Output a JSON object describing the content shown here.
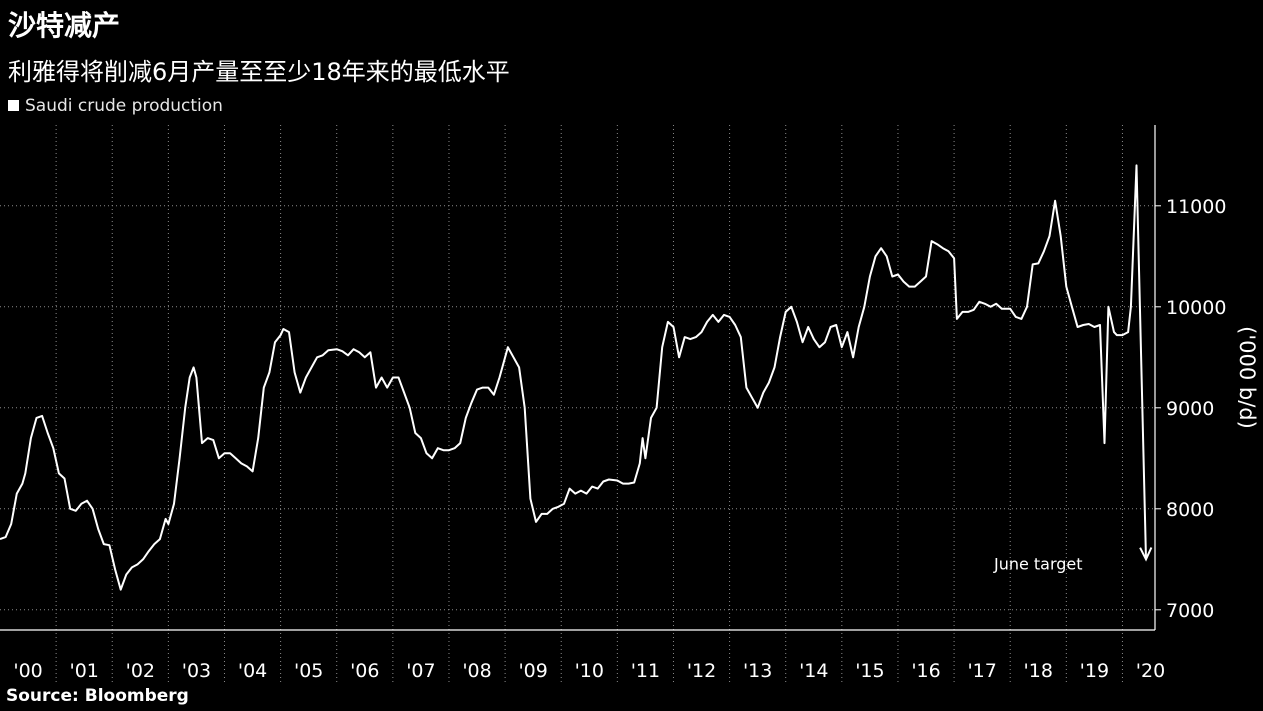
{
  "title": "沙特减产",
  "subtitle": "利雅得将削减6月产量至至少18年来的最低水平",
  "legend_label": "Saudi crude production",
  "source": "Source: Bloomberg",
  "colors": {
    "background": "#000000",
    "line": "#ffffff",
    "grid": "#8a8a8a"
  },
  "chart_data": {
    "type": "line",
    "title": "沙特减产",
    "subtitle": "利雅得将削减6月产量至至少18年来的最低水平",
    "ylabel": "('000 b/d)",
    "yticks": [
      7000,
      8000,
      9000,
      10000,
      11000
    ],
    "ylim": [
      6800,
      11800
    ],
    "xlim": [
      2000.0,
      2020.58
    ],
    "year_labels": [
      "'00",
      "'01",
      "'02",
      "'03",
      "'04",
      "'05",
      "'06",
      "'07",
      "'08",
      "'09",
      "'10",
      "'11",
      "'12",
      "'13",
      "'14",
      "'15",
      "'16",
      "'17",
      "'18",
      "'19",
      "'20"
    ],
    "grid": "horizontal dotted",
    "legend_position": "top-left",
    "annotation": {
      "text": "June target",
      "x": 2020.42,
      "y": 7500
    },
    "series": [
      {
        "name": "Saudi crude production",
        "points": [
          [
            2000.0,
            7700
          ],
          [
            2000.1,
            7720
          ],
          [
            2000.2,
            7850
          ],
          [
            2000.3,
            8150
          ],
          [
            2000.4,
            8250
          ],
          [
            2000.45,
            8350
          ],
          [
            2000.55,
            8700
          ],
          [
            2000.65,
            8900
          ],
          [
            2000.75,
            8920
          ],
          [
            2000.85,
            8750
          ],
          [
            2000.95,
            8600
          ],
          [
            2001.05,
            8350
          ],
          [
            2001.15,
            8300
          ],
          [
            2001.25,
            8000
          ],
          [
            2001.35,
            7980
          ],
          [
            2001.45,
            8050
          ],
          [
            2001.55,
            8080
          ],
          [
            2001.65,
            8000
          ],
          [
            2001.75,
            7800
          ],
          [
            2001.85,
            7650
          ],
          [
            2001.95,
            7640
          ],
          [
            2002.05,
            7400
          ],
          [
            2002.15,
            7200
          ],
          [
            2002.25,
            7350
          ],
          [
            2002.35,
            7420
          ],
          [
            2002.45,
            7450
          ],
          [
            2002.55,
            7500
          ],
          [
            2002.65,
            7580
          ],
          [
            2002.75,
            7650
          ],
          [
            2002.85,
            7700
          ],
          [
            2002.95,
            7900
          ],
          [
            2003.0,
            7850
          ],
          [
            2003.1,
            8050
          ],
          [
            2003.2,
            8500
          ],
          [
            2003.3,
            9000
          ],
          [
            2003.38,
            9300
          ],
          [
            2003.45,
            9400
          ],
          [
            2003.5,
            9300
          ],
          [
            2003.6,
            8650
          ],
          [
            2003.7,
            8700
          ],
          [
            2003.8,
            8680
          ],
          [
            2003.9,
            8500
          ],
          [
            2004.0,
            8550
          ],
          [
            2004.1,
            8550
          ],
          [
            2004.2,
            8500
          ],
          [
            2004.3,
            8450
          ],
          [
            2004.4,
            8420
          ],
          [
            2004.5,
            8370
          ],
          [
            2004.6,
            8700
          ],
          [
            2004.7,
            9200
          ],
          [
            2004.8,
            9350
          ],
          [
            2004.9,
            9650
          ],
          [
            2005.0,
            9720
          ],
          [
            2005.05,
            9780
          ],
          [
            2005.15,
            9750
          ],
          [
            2005.25,
            9350
          ],
          [
            2005.35,
            9150
          ],
          [
            2005.45,
            9300
          ],
          [
            2005.55,
            9400
          ],
          [
            2005.65,
            9500
          ],
          [
            2005.75,
            9520
          ],
          [
            2005.85,
            9570
          ],
          [
            2006.0,
            9580
          ],
          [
            2006.1,
            9560
          ],
          [
            2006.2,
            9520
          ],
          [
            2006.3,
            9580
          ],
          [
            2006.4,
            9550
          ],
          [
            2006.5,
            9500
          ],
          [
            2006.6,
            9550
          ],
          [
            2006.7,
            9200
          ],
          [
            2006.8,
            9300
          ],
          [
            2006.9,
            9200
          ],
          [
            2007.0,
            9300
          ],
          [
            2007.1,
            9300
          ],
          [
            2007.2,
            9150
          ],
          [
            2007.3,
            9000
          ],
          [
            2007.4,
            8750
          ],
          [
            2007.5,
            8700
          ],
          [
            2007.6,
            8550
          ],
          [
            2007.7,
            8500
          ],
          [
            2007.8,
            8600
          ],
          [
            2007.9,
            8580
          ],
          [
            2008.0,
            8580
          ],
          [
            2008.1,
            8600
          ],
          [
            2008.2,
            8650
          ],
          [
            2008.3,
            8900
          ],
          [
            2008.4,
            9050
          ],
          [
            2008.5,
            9180
          ],
          [
            2008.6,
            9200
          ],
          [
            2008.7,
            9200
          ],
          [
            2008.8,
            9130
          ],
          [
            2008.9,
            9300
          ],
          [
            2009.0,
            9500
          ],
          [
            2009.05,
            9600
          ],
          [
            2009.15,
            9500
          ],
          [
            2009.25,
            9400
          ],
          [
            2009.35,
            9000
          ],
          [
            2009.45,
            8100
          ],
          [
            2009.55,
            7870
          ],
          [
            2009.65,
            7950
          ],
          [
            2009.75,
            7950
          ],
          [
            2009.85,
            8000
          ],
          [
            2009.95,
            8020
          ],
          [
            2010.05,
            8050
          ],
          [
            2010.15,
            8200
          ],
          [
            2010.25,
            8150
          ],
          [
            2010.35,
            8180
          ],
          [
            2010.45,
            8150
          ],
          [
            2010.55,
            8220
          ],
          [
            2010.65,
            8200
          ],
          [
            2010.75,
            8270
          ],
          [
            2010.85,
            8290
          ],
          [
            2011.0,
            8280
          ],
          [
            2011.1,
            8250
          ],
          [
            2011.2,
            8250
          ],
          [
            2011.3,
            8260
          ],
          [
            2011.4,
            8450
          ],
          [
            2011.45,
            8700
          ],
          [
            2011.5,
            8500
          ],
          [
            2011.6,
            8900
          ],
          [
            2011.7,
            9000
          ],
          [
            2011.8,
            9600
          ],
          [
            2011.9,
            9850
          ],
          [
            2012.0,
            9800
          ],
          [
            2012.1,
            9500
          ],
          [
            2012.2,
            9700
          ],
          [
            2012.3,
            9680
          ],
          [
            2012.4,
            9700
          ],
          [
            2012.5,
            9750
          ],
          [
            2012.6,
            9850
          ],
          [
            2012.7,
            9920
          ],
          [
            2012.8,
            9850
          ],
          [
            2012.9,
            9920
          ],
          [
            2013.0,
            9900
          ],
          [
            2013.1,
            9820
          ],
          [
            2013.2,
            9700
          ],
          [
            2013.3,
            9200
          ],
          [
            2013.4,
            9100
          ],
          [
            2013.5,
            9000
          ],
          [
            2013.6,
            9150
          ],
          [
            2013.7,
            9250
          ],
          [
            2013.8,
            9400
          ],
          [
            2013.9,
            9700
          ],
          [
            2014.0,
            9950
          ],
          [
            2014.1,
            10000
          ],
          [
            2014.2,
            9850
          ],
          [
            2014.3,
            9650
          ],
          [
            2014.4,
            9800
          ],
          [
            2014.5,
            9680
          ],
          [
            2014.6,
            9600
          ],
          [
            2014.7,
            9650
          ],
          [
            2014.8,
            9800
          ],
          [
            2014.9,
            9820
          ],
          [
            2015.0,
            9600
          ],
          [
            2015.1,
            9750
          ],
          [
            2015.2,
            9500
          ],
          [
            2015.3,
            9800
          ],
          [
            2015.4,
            10000
          ],
          [
            2015.5,
            10300
          ],
          [
            2015.6,
            10500
          ],
          [
            2015.7,
            10580
          ],
          [
            2015.8,
            10500
          ],
          [
            2015.9,
            10300
          ],
          [
            2016.0,
            10320
          ],
          [
            2016.1,
            10250
          ],
          [
            2016.2,
            10200
          ],
          [
            2016.3,
            10200
          ],
          [
            2016.4,
            10250
          ],
          [
            2016.5,
            10300
          ],
          [
            2016.6,
            10650
          ],
          [
            2016.7,
            10620
          ],
          [
            2016.8,
            10580
          ],
          [
            2016.9,
            10550
          ],
          [
            2017.0,
            10480
          ],
          [
            2017.05,
            9880
          ],
          [
            2017.15,
            9950
          ],
          [
            2017.25,
            9950
          ],
          [
            2017.35,
            9970
          ],
          [
            2017.45,
            10050
          ],
          [
            2017.55,
            10030
          ],
          [
            2017.65,
            10000
          ],
          [
            2017.75,
            10030
          ],
          [
            2017.85,
            9980
          ],
          [
            2018.0,
            9980
          ],
          [
            2018.1,
            9900
          ],
          [
            2018.2,
            9880
          ],
          [
            2018.3,
            10000
          ],
          [
            2018.4,
            10420
          ],
          [
            2018.5,
            10430
          ],
          [
            2018.6,
            10550
          ],
          [
            2018.7,
            10700
          ],
          [
            2018.8,
            11050
          ],
          [
            2018.9,
            10700
          ],
          [
            2019.0,
            10200
          ],
          [
            2019.1,
            10000
          ],
          [
            2019.2,
            9800
          ],
          [
            2019.3,
            9820
          ],
          [
            2019.4,
            9830
          ],
          [
            2019.5,
            9800
          ],
          [
            2019.6,
            9820
          ],
          [
            2019.68,
            8650
          ],
          [
            2019.75,
            10000
          ],
          [
            2019.85,
            9750
          ],
          [
            2019.9,
            9720
          ],
          [
            2020.0,
            9720
          ],
          [
            2020.1,
            9750
          ],
          [
            2020.15,
            10000
          ],
          [
            2020.25,
            11400
          ],
          [
            2020.42,
            7500
          ]
        ]
      }
    ]
  }
}
